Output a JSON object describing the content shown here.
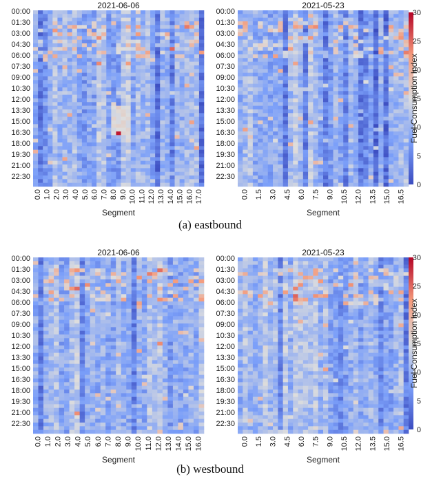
{
  "colors": {
    "low": "#3b4cc0",
    "mid": "#dddddd",
    "high": "#b40426"
  },
  "colorbar": {
    "label": "Fuel Consumption Index",
    "ticks": [
      "0",
      "5",
      "10",
      "15",
      "20",
      "25",
      "30"
    ],
    "vmin": 0,
    "vmax": 30
  },
  "captions": {
    "a": "(a) eastbound",
    "b": "(b) westbound"
  },
  "chart_data": [
    {
      "type": "heatmap",
      "panel": "a-left",
      "title": "2021-06-06",
      "xlabel": "Segment",
      "ylabel": "",
      "y_ticks": [
        "00:00",
        "01:30",
        "03:00",
        "04:30",
        "06:00",
        "07:30",
        "09:00",
        "10:30",
        "12:00",
        "13:30",
        "15:00",
        "16:30",
        "18:00",
        "19:30",
        "21:00",
        "22:30"
      ],
      "x_ticks": [
        "0.0",
        "1.0",
        "2.0",
        "3.0",
        "4.0",
        "5.0",
        "6.0",
        "7.0",
        "8.0",
        "9.0",
        "10.0",
        "11.0",
        "12.0",
        "13.0",
        "14.0",
        "15.0",
        "16.0",
        "17.0"
      ],
      "n_rows": 48,
      "n_cols": 35,
      "value_range": [
        0,
        30
      ],
      "seed": 11
    },
    {
      "type": "heatmap",
      "panel": "a-right",
      "title": "2021-05-23",
      "xlabel": "Segment",
      "ylabel": "",
      "y_ticks": [
        "00:00",
        "01:30",
        "03:00",
        "04:30",
        "06:00",
        "07:30",
        "09:00",
        "10:30",
        "12:00",
        "13:30",
        "15:00",
        "16:30",
        "18:00",
        "19:30",
        "21:00",
        "22:30"
      ],
      "x_ticks": [
        "0.0",
        "1.5",
        "3.0",
        "4.5",
        "6.0",
        "7.5",
        "9.0",
        "10.5",
        "12.0",
        "13.5",
        "15.0",
        "16.5"
      ],
      "n_rows": 48,
      "n_cols": 34,
      "value_range": [
        0,
        30
      ],
      "seed": 23
    },
    {
      "type": "heatmap",
      "panel": "b-left",
      "title": "2021-06-06",
      "xlabel": "Segment",
      "ylabel": "",
      "y_ticks": [
        "00:00",
        "01:30",
        "03:00",
        "04:30",
        "06:00",
        "07:30",
        "09:00",
        "10:30",
        "12:00",
        "13:30",
        "15:00",
        "16:30",
        "18:00",
        "19:30",
        "21:00",
        "22:30"
      ],
      "x_ticks": [
        "0.0",
        "1.0",
        "2.0",
        "3.0",
        "4.0",
        "5.0",
        "6.0",
        "7.0",
        "8.0",
        "9.0",
        "10.0",
        "11.0",
        "12.0",
        "13.0",
        "14.0",
        "15.0",
        "16.0"
      ],
      "n_rows": 48,
      "n_cols": 33,
      "value_range": [
        0,
        30
      ],
      "seed": 37
    },
    {
      "type": "heatmap",
      "panel": "b-right",
      "title": "2021-05-23",
      "xlabel": "Segment",
      "ylabel": "",
      "y_ticks": [
        "00:00",
        "01:30",
        "03:00",
        "04:30",
        "06:00",
        "07:30",
        "09:00",
        "10:30",
        "12:00",
        "13:30",
        "15:00",
        "16:30",
        "18:00",
        "19:30",
        "21:00",
        "22:30"
      ],
      "x_ticks": [
        "0.0",
        "1.5",
        "3.0",
        "4.5",
        "6.0",
        "7.5",
        "9.0",
        "10.5",
        "12.0",
        "13.5",
        "15.0",
        "16.5"
      ],
      "n_rows": 48,
      "n_cols": 34,
      "value_range": [
        0,
        30
      ],
      "seed": 51
    }
  ]
}
